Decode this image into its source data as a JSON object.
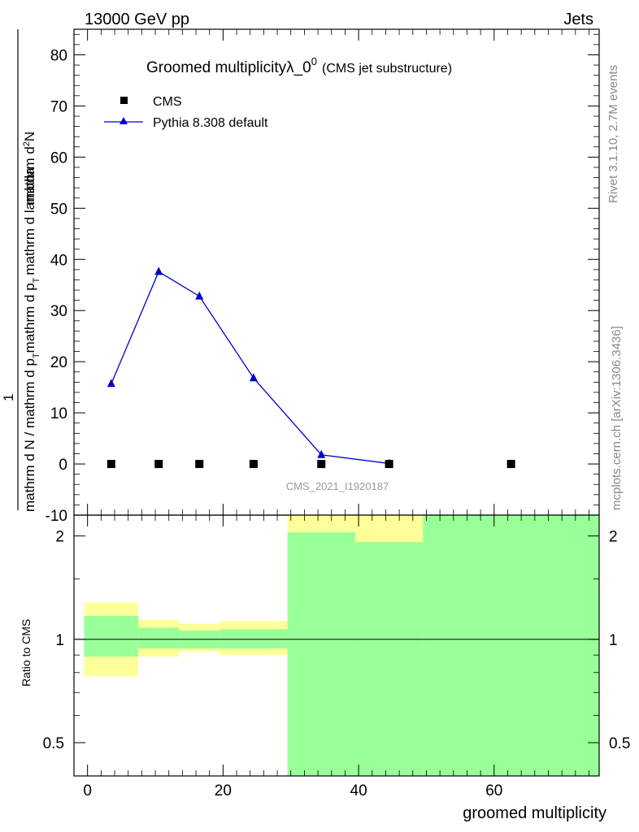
{
  "header": {
    "left": "13000 GeV pp",
    "right": "Jets"
  },
  "side_labels": {
    "rivet": "Rivet 3.1.10,  2.7M events",
    "mcplots": "mcplots.cern.ch [arXiv:1306.3436]"
  },
  "watermark": "CMS_2021_I1920187",
  "colors": {
    "mc": "#0000cc",
    "data": "#000000",
    "band_outer": "#ffff99",
    "band_inner": "#99ff99"
  },
  "chart_data": [
    {
      "type": "line",
      "panel": "main",
      "title": "Groomed multiplicityλ_0",
      "title_sup": "0",
      "title_suffix": "(CMS jet substructure)",
      "ylabel_fraction": {
        "prefix_num": "1",
        "prefix_den": "mathrm d N / mathrm d p",
        "sub_T": "T",
        "num": "mathrm d",
        "num_sup": "2",
        "num_tail": "N",
        "den": "mathrm d p",
        "den_tail": "mathrm d lambda"
      },
      "ylim": [
        -10,
        85
      ],
      "yticks": [
        -10,
        0,
        10,
        20,
        30,
        40,
        50,
        60,
        70,
        80
      ],
      "xlim": [
        -2,
        75.5
      ],
      "legend": [
        {
          "label": "CMS",
          "marker": "square"
        },
        {
          "label": "Pythia 8.308 default",
          "marker": "triangle-line"
        }
      ],
      "series": [
        {
          "name": "CMS",
          "x": [
            3.5,
            10.5,
            16.5,
            24.5,
            34.5,
            44.5,
            62.5
          ],
          "y": [
            0,
            0,
            0,
            0,
            0,
            0,
            0
          ]
        },
        {
          "name": "Pythia 8.308 default",
          "x": [
            3.5,
            10.5,
            16.5,
            24.5,
            34.5,
            44.5
          ],
          "y": [
            15.7,
            37.6,
            32.8,
            16.8,
            1.8,
            0.1
          ]
        }
      ]
    },
    {
      "type": "area",
      "panel": "ratio",
      "ylabel": "Ratio to CMS",
      "xlabel": "groomed multiplicity",
      "xlim": [
        -2,
        75.5
      ],
      "xticks": [
        0,
        20,
        40,
        60
      ],
      "ylim": [
        0.4,
        2.3
      ],
      "log_y": true,
      "yticks": [
        0.5,
        1,
        2
      ],
      "reference_line": 1,
      "bins": [
        {
          "x0": -0.5,
          "x1": 7.5,
          "outer": [
            0.78,
            1.28
          ],
          "inner": [
            0.89,
            1.17
          ]
        },
        {
          "x0": 7.5,
          "x1": 13.5,
          "outer": [
            0.89,
            1.14
          ],
          "inner": [
            0.94,
            1.08
          ]
        },
        {
          "x0": 13.5,
          "x1": 19.5,
          "outer": [
            0.92,
            1.11
          ],
          "inner": [
            0.94,
            1.06
          ]
        },
        {
          "x0": 19.5,
          "x1": 29.5,
          "outer": [
            0.9,
            1.13
          ],
          "inner": [
            0.94,
            1.07
          ]
        },
        {
          "x0": 29.5,
          "x1": 39.5,
          "outer": [
            0.35,
            2.3
          ],
          "inner": [
            0.35,
            2.05
          ]
        },
        {
          "x0": 39.5,
          "x1": 49.5,
          "outer": [
            0.35,
            2.3
          ],
          "inner": [
            0.35,
            1.92
          ]
        },
        {
          "x0": 49.5,
          "x1": 75.5,
          "outer": [
            0.35,
            2.3
          ],
          "inner": [
            0.35,
            2.3
          ]
        }
      ]
    }
  ]
}
